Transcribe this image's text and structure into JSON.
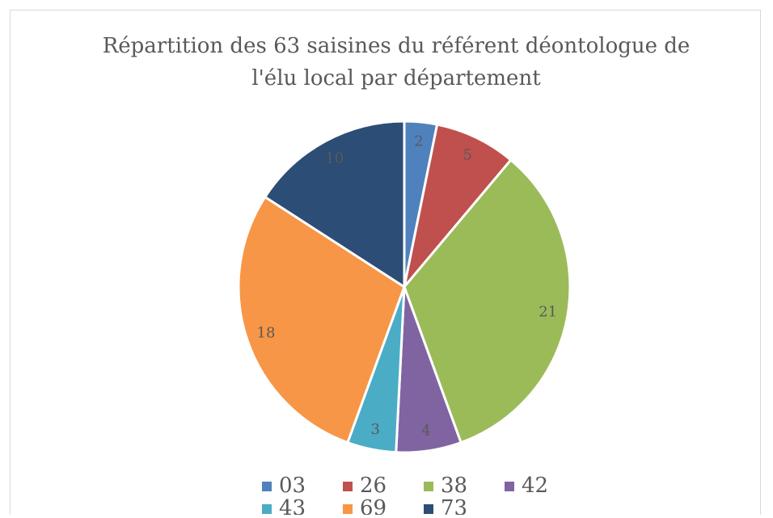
{
  "chart_data": {
    "type": "pie",
    "title": [
      "Répartition des 63 saisines du référent déontologue de",
      "l'élu local par département"
    ],
    "categories": [
      "03",
      "26",
      "38",
      "42",
      "43",
      "69",
      "73"
    ],
    "values": [
      2,
      5,
      21,
      4,
      3,
      18,
      10
    ],
    "colors": [
      "#4f81bd",
      "#c0504d",
      "#9bbb59",
      "#8064a2",
      "#4bacc6",
      "#f79646",
      "#2c4d75"
    ],
    "legend": "bottom"
  }
}
